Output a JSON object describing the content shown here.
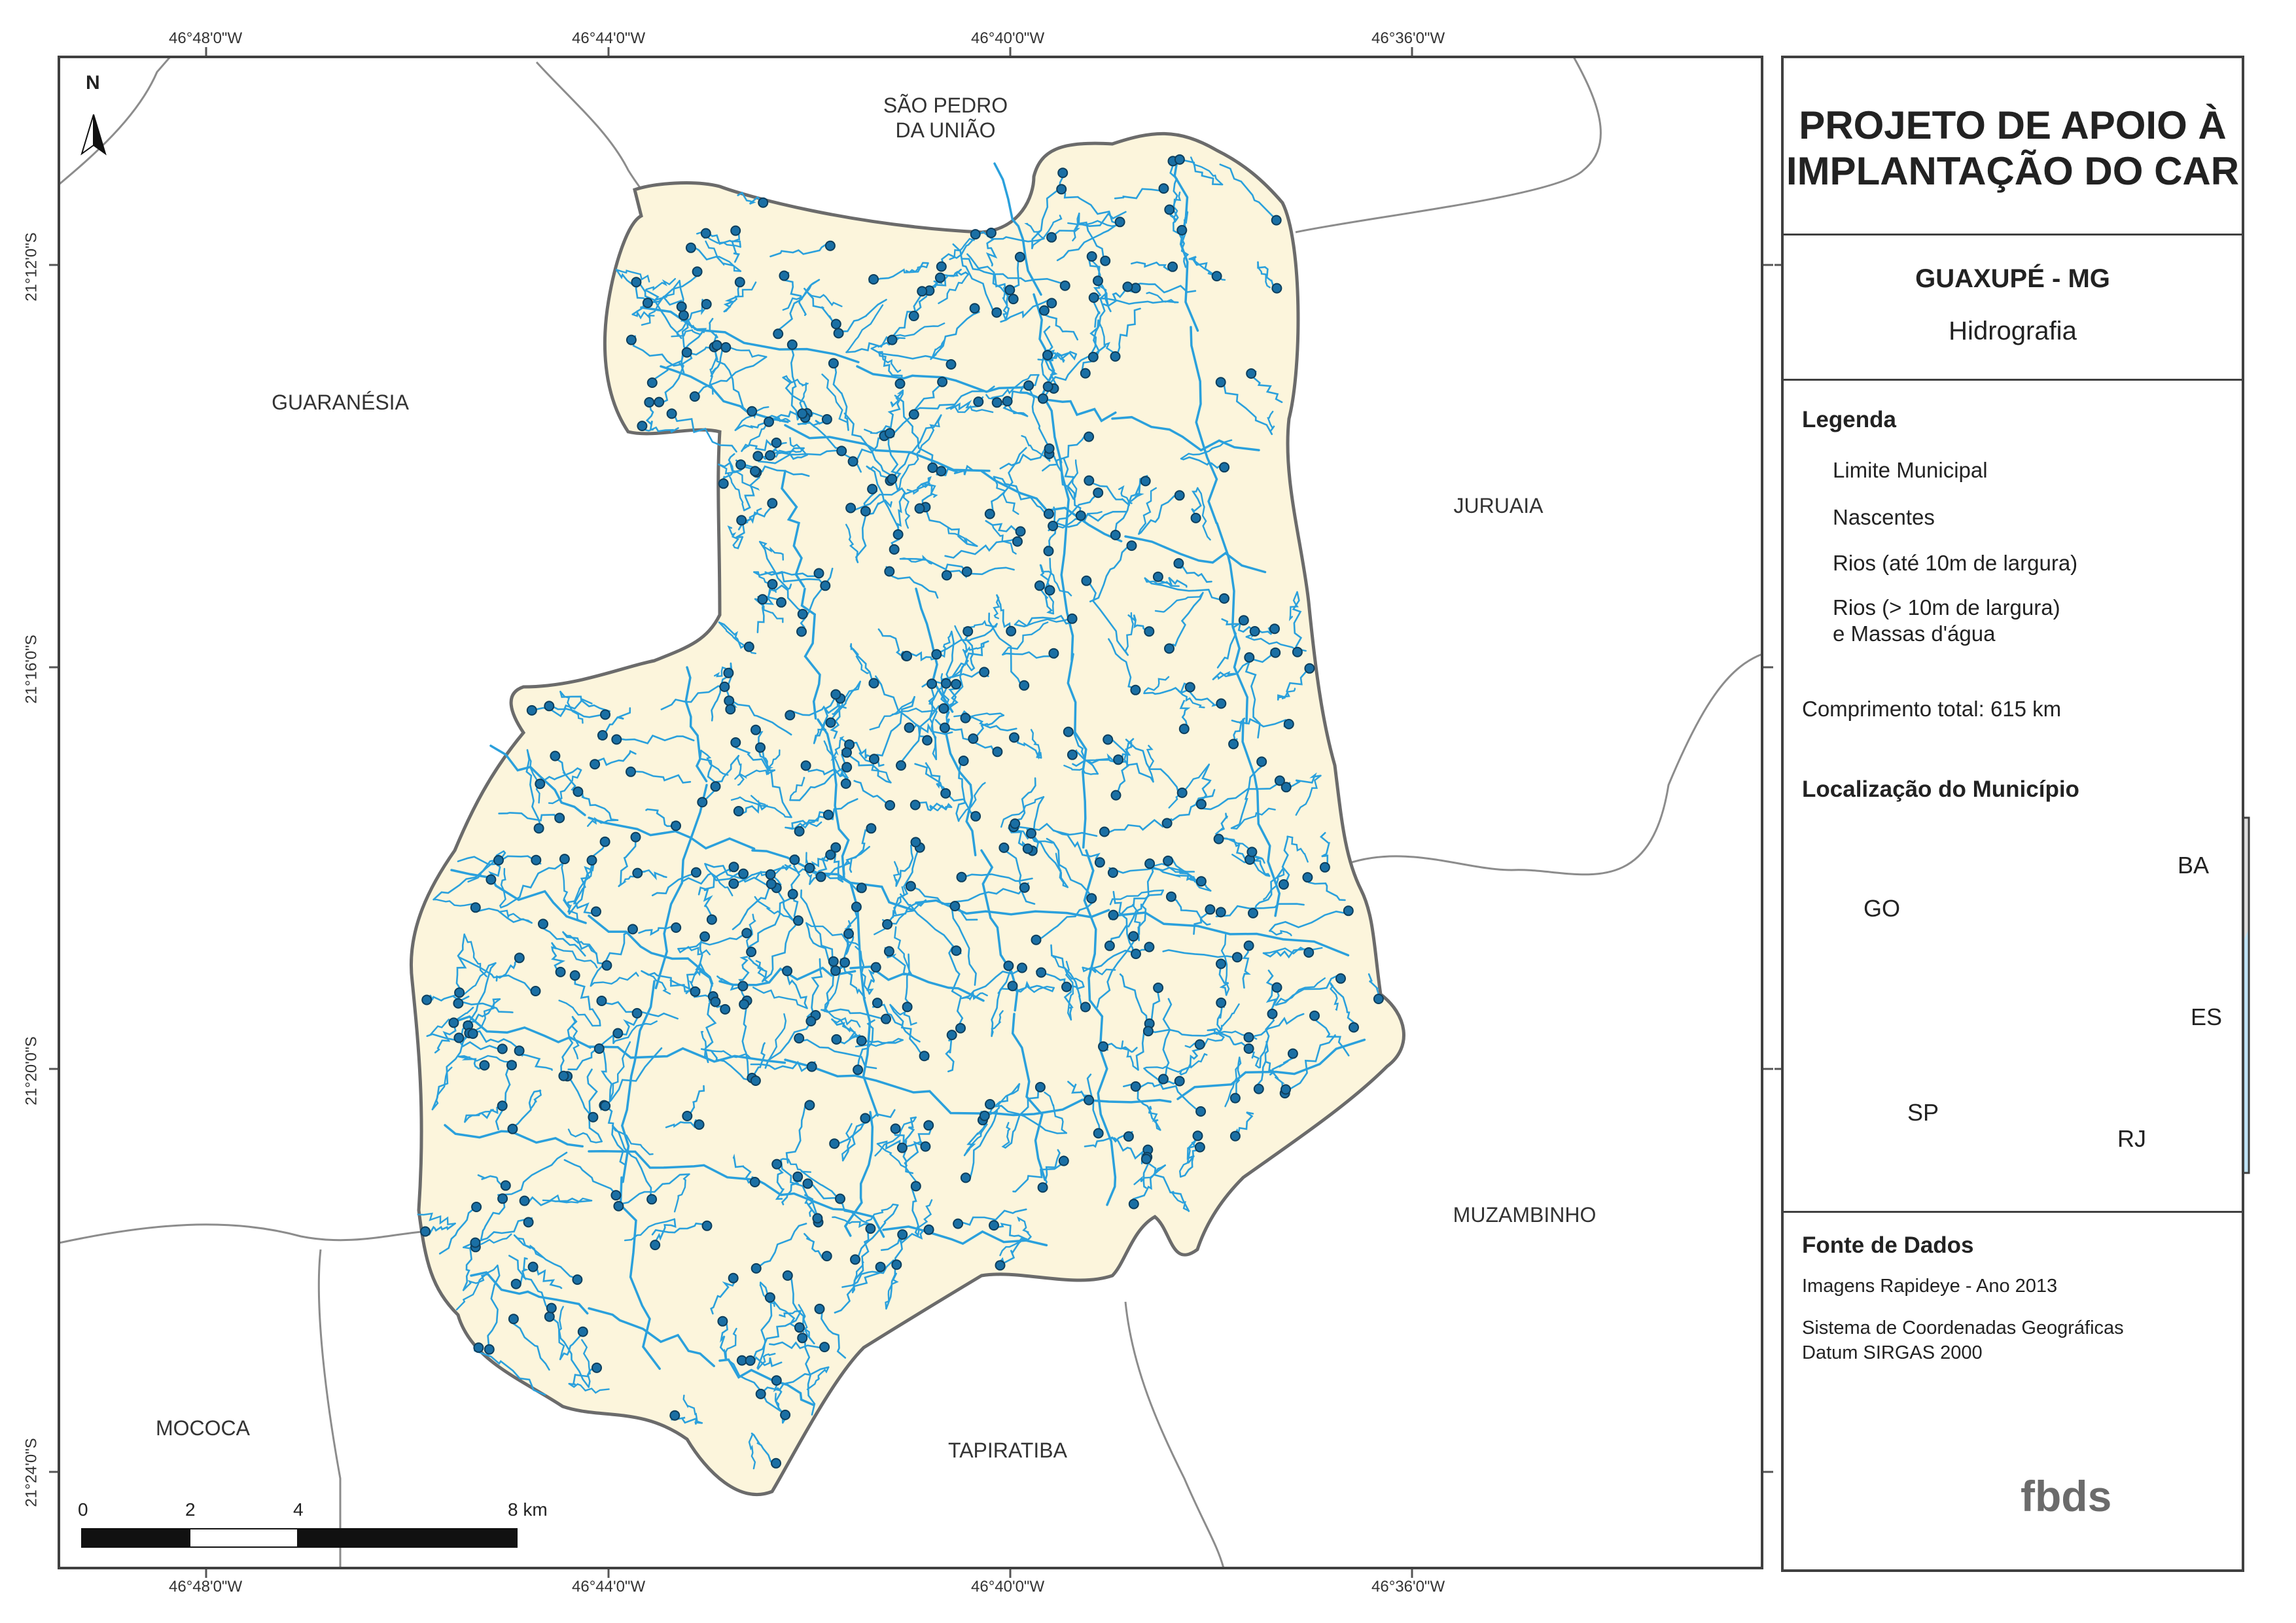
{
  "north_arrow_label": "N",
  "coordinates": {
    "longitudes": [
      "46°48'0\"W",
      "46°44'0\"W",
      "46°40'0\"W",
      "46°36'0\"W"
    ],
    "latitudes": [
      "21°12'0\"S",
      "21°16'0\"S",
      "21°20'0\"S",
      "21°24'0\"S"
    ]
  },
  "places": {
    "sao_pedro": "SÃO PEDRO\nDA UNIÃO",
    "guaranesia": "GUARANÉSIA",
    "juruaia": "JURUAIA",
    "muzambinho": "MUZAMBINHO",
    "mococa": "MOCOCA",
    "tapiratiba": "TAPIRATIBA"
  },
  "scale_bar": {
    "labels": [
      "0",
      "2",
      "4",
      "8 km"
    ]
  },
  "panel": {
    "title": "PROJETO DE APOIO À\nIMPLANTAÇÃO DO CAR",
    "municipality": "GUAXUPÉ - MG",
    "theme": "Hidrografia",
    "legend_heading": "Legenda",
    "legend_items": [
      {
        "label": "Limite Municipal",
        "symbol": "polygon-outline"
      },
      {
        "label": "Nascentes",
        "symbol": "point"
      },
      {
        "label": "Rios (até 10m de largura)",
        "symbol": "line"
      },
      {
        "label": "Rios (> 10m de largura)\ne Massas d'água",
        "symbol": "water-polygon"
      }
    ],
    "total_length": "Comprimento total: 615 km",
    "location_heading": "Localização do Município",
    "inset_labels": [
      "GO",
      "BA",
      "ES",
      "SP",
      "RJ"
    ],
    "sources_heading": "Fonte de Dados",
    "sources": [
      "Imagens Rapideye - Ano 2013",
      "Sistema de Coordenadas Geográficas\nDatum SIRGAS 2000"
    ],
    "logo_text": "fbds"
  },
  "colors": {
    "municipality_fill": "#fcf5dc",
    "boundary": "#6b6b6b",
    "river": "#2aa0dc",
    "spring": "#1a6fa4",
    "water_body": "#bfe3f5",
    "inset_marker": "#e00000"
  }
}
